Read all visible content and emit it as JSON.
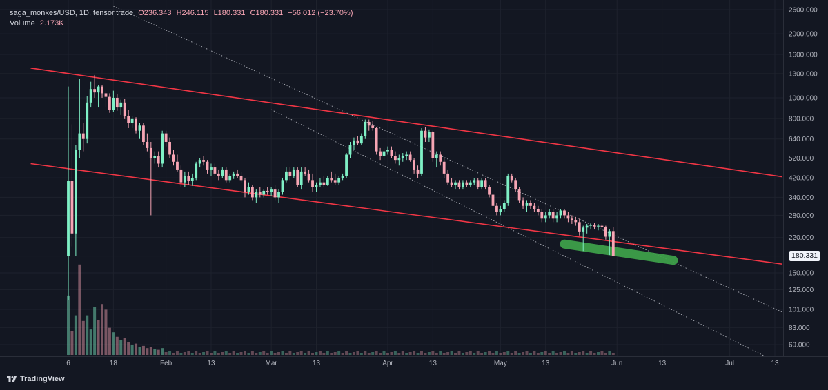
{
  "legend": {
    "symbol": "saga_monkes/USD, 1D, tensor.trade",
    "open": "O236.343",
    "high": "H246.115",
    "low": "L180.331",
    "close": "C180.331",
    "change": "−56.012 (−23.70%)",
    "volume_label": "Volume",
    "volume_value": "2.173K"
  },
  "last_price_label": "180.331",
  "brand": "TradingView",
  "colors": {
    "background": "#131722",
    "up": "#7ff0c6",
    "down": "#f7a5b4",
    "trendline": "#f23645",
    "channel": "#d1d4dc",
    "highlight": "#3fa44b"
  },
  "chart_data": {
    "type": "candlestick",
    "y_scale": "log",
    "ylim": [
      60,
      2700
    ],
    "y_ticks": [
      "2600.000",
      "2000.000",
      "1600.000",
      "1300.000",
      "1000.000",
      "800.000",
      "640.000",
      "520.000",
      "420.000",
      "340.000",
      "280.000",
      "220.000",
      "180.000",
      "150.000",
      "125.000",
      "101.000",
      "83.000",
      "69.000"
    ],
    "y_tick_values": [
      2600,
      2000,
      1600,
      1300,
      1000,
      800,
      640,
      520,
      420,
      340,
      280,
      220,
      180,
      150,
      125,
      101,
      83,
      69
    ],
    "x_ticks": [
      "6",
      "18",
      "Feb",
      "13",
      "Mar",
      "13",
      "Apr",
      "13",
      "May",
      "13",
      "Jun",
      "13",
      "Jul",
      "13"
    ],
    "x_tick_days": [
      0,
      12,
      26,
      38,
      54,
      66,
      85,
      97,
      115,
      127,
      146,
      158,
      176,
      188
    ],
    "x_start": "2024-01-06",
    "candles": [
      {
        "d": 0,
        "o": 180,
        "h": 1130,
        "l": 112,
        "c": 405
      },
      {
        "d": 1,
        "o": 405,
        "h": 750,
        "l": 200,
        "c": 230
      },
      {
        "d": 2,
        "o": 230,
        "h": 600,
        "l": 180,
        "c": 570
      },
      {
        "d": 3,
        "o": 570,
        "h": 1230,
        "l": 520,
        "c": 680
      },
      {
        "d": 4,
        "o": 680,
        "h": 760,
        "l": 560,
        "c": 640
      },
      {
        "d": 5,
        "o": 640,
        "h": 1020,
        "l": 610,
        "c": 950
      },
      {
        "d": 6,
        "o": 950,
        "h": 1190,
        "l": 900,
        "c": 1100
      },
      {
        "d": 7,
        "o": 1100,
        "h": 1280,
        "l": 1000,
        "c": 1060
      },
      {
        "d": 8,
        "o": 1060,
        "h": 1150,
        "l": 900,
        "c": 1130
      },
      {
        "d": 9,
        "o": 1130,
        "h": 1150,
        "l": 1000,
        "c": 1050
      },
      {
        "d": 10,
        "o": 1050,
        "h": 1080,
        "l": 900,
        "c": 1010
      },
      {
        "d": 11,
        "o": 1010,
        "h": 1050,
        "l": 850,
        "c": 880
      },
      {
        "d": 12,
        "o": 880,
        "h": 1080,
        "l": 860,
        "c": 1000
      },
      {
        "d": 13,
        "o": 1000,
        "h": 1040,
        "l": 870,
        "c": 900
      },
      {
        "d": 14,
        "o": 900,
        "h": 980,
        "l": 830,
        "c": 950
      },
      {
        "d": 15,
        "o": 950,
        "h": 990,
        "l": 800,
        "c": 820
      },
      {
        "d": 16,
        "o": 820,
        "h": 880,
        "l": 720,
        "c": 760
      },
      {
        "d": 17,
        "o": 760,
        "h": 820,
        "l": 720,
        "c": 800
      },
      {
        "d": 18,
        "o": 800,
        "h": 810,
        "l": 680,
        "c": 700
      },
      {
        "d": 19,
        "o": 700,
        "h": 760,
        "l": 640,
        "c": 740
      },
      {
        "d": 20,
        "o": 740,
        "h": 760,
        "l": 600,
        "c": 620
      },
      {
        "d": 21,
        "o": 620,
        "h": 680,
        "l": 560,
        "c": 580
      },
      {
        "d": 22,
        "o": 580,
        "h": 620,
        "l": 280,
        "c": 520
      },
      {
        "d": 23,
        "o": 520,
        "h": 560,
        "l": 490,
        "c": 530
      },
      {
        "d": 24,
        "o": 530,
        "h": 560,
        "l": 470,
        "c": 490
      },
      {
        "d": 25,
        "o": 490,
        "h": 700,
        "l": 470,
        "c": 680
      },
      {
        "d": 26,
        "o": 680,
        "h": 700,
        "l": 590,
        "c": 620
      },
      {
        "d": 27,
        "o": 620,
        "h": 650,
        "l": 520,
        "c": 540
      },
      {
        "d": 28,
        "o": 540,
        "h": 570,
        "l": 480,
        "c": 500
      },
      {
        "d": 29,
        "o": 500,
        "h": 540,
        "l": 450,
        "c": 460
      },
      {
        "d": 30,
        "o": 460,
        "h": 480,
        "l": 380,
        "c": 400
      },
      {
        "d": 31,
        "o": 400,
        "h": 450,
        "l": 380,
        "c": 430
      },
      {
        "d": 32,
        "o": 430,
        "h": 450,
        "l": 390,
        "c": 405
      },
      {
        "d": 33,
        "o": 405,
        "h": 440,
        "l": 385,
        "c": 420
      },
      {
        "d": 34,
        "o": 420,
        "h": 500,
        "l": 410,
        "c": 490
      },
      {
        "d": 35,
        "o": 490,
        "h": 520,
        "l": 470,
        "c": 510
      },
      {
        "d": 36,
        "o": 510,
        "h": 530,
        "l": 480,
        "c": 500
      },
      {
        "d": 37,
        "o": 500,
        "h": 510,
        "l": 440,
        "c": 460
      },
      {
        "d": 38,
        "o": 460,
        "h": 490,
        "l": 430,
        "c": 470
      },
      {
        "d": 39,
        "o": 470,
        "h": 490,
        "l": 430,
        "c": 440
      },
      {
        "d": 40,
        "o": 440,
        "h": 460,
        "l": 410,
        "c": 430
      },
      {
        "d": 41,
        "o": 430,
        "h": 470,
        "l": 420,
        "c": 460
      },
      {
        "d": 42,
        "o": 460,
        "h": 470,
        "l": 400,
        "c": 410
      },
      {
        "d": 43,
        "o": 410,
        "h": 440,
        "l": 400,
        "c": 430
      },
      {
        "d": 44,
        "o": 430,
        "h": 450,
        "l": 415,
        "c": 440
      },
      {
        "d": 45,
        "o": 440,
        "h": 460,
        "l": 420,
        "c": 430
      },
      {
        "d": 46,
        "o": 430,
        "h": 450,
        "l": 400,
        "c": 410
      },
      {
        "d": 47,
        "o": 410,
        "h": 420,
        "l": 340,
        "c": 360
      },
      {
        "d": 48,
        "o": 360,
        "h": 400,
        "l": 350,
        "c": 380
      },
      {
        "d": 49,
        "o": 380,
        "h": 390,
        "l": 330,
        "c": 340
      },
      {
        "d": 50,
        "o": 340,
        "h": 370,
        "l": 320,
        "c": 360
      },
      {
        "d": 51,
        "o": 360,
        "h": 380,
        "l": 340,
        "c": 350
      },
      {
        "d": 52,
        "o": 350,
        "h": 370,
        "l": 340,
        "c": 365
      },
      {
        "d": 53,
        "o": 365,
        "h": 380,
        "l": 350,
        "c": 360
      },
      {
        "d": 54,
        "o": 360,
        "h": 380,
        "l": 345,
        "c": 370
      },
      {
        "d": 55,
        "o": 370,
        "h": 390,
        "l": 330,
        "c": 340
      },
      {
        "d": 56,
        "o": 340,
        "h": 370,
        "l": 320,
        "c": 360
      },
      {
        "d": 57,
        "o": 360,
        "h": 420,
        "l": 350,
        "c": 410
      },
      {
        "d": 58,
        "o": 410,
        "h": 470,
        "l": 400,
        "c": 450
      },
      {
        "d": 59,
        "o": 450,
        "h": 470,
        "l": 410,
        "c": 430
      },
      {
        "d": 60,
        "o": 430,
        "h": 470,
        "l": 420,
        "c": 460
      },
      {
        "d": 61,
        "o": 460,
        "h": 470,
        "l": 380,
        "c": 390
      },
      {
        "d": 62,
        "o": 390,
        "h": 470,
        "l": 370,
        "c": 450
      },
      {
        "d": 63,
        "o": 450,
        "h": 470,
        "l": 430,
        "c": 440
      },
      {
        "d": 64,
        "o": 440,
        "h": 460,
        "l": 400,
        "c": 410
      },
      {
        "d": 65,
        "o": 410,
        "h": 440,
        "l": 360,
        "c": 380
      },
      {
        "d": 66,
        "o": 380,
        "h": 400,
        "l": 360,
        "c": 390
      },
      {
        "d": 67,
        "o": 390,
        "h": 420,
        "l": 380,
        "c": 400
      },
      {
        "d": 68,
        "o": 400,
        "h": 430,
        "l": 380,
        "c": 390
      },
      {
        "d": 69,
        "o": 390,
        "h": 430,
        "l": 385,
        "c": 420
      },
      {
        "d": 70,
        "o": 420,
        "h": 450,
        "l": 400,
        "c": 410
      },
      {
        "d": 71,
        "o": 410,
        "h": 440,
        "l": 390,
        "c": 400
      },
      {
        "d": 72,
        "o": 400,
        "h": 430,
        "l": 390,
        "c": 420
      },
      {
        "d": 73,
        "o": 420,
        "h": 440,
        "l": 410,
        "c": 430
      },
      {
        "d": 74,
        "o": 430,
        "h": 550,
        "l": 420,
        "c": 540
      },
      {
        "d": 75,
        "o": 540,
        "h": 620,
        "l": 520,
        "c": 600
      },
      {
        "d": 76,
        "o": 600,
        "h": 650,
        "l": 570,
        "c": 630
      },
      {
        "d": 77,
        "o": 630,
        "h": 660,
        "l": 600,
        "c": 610
      },
      {
        "d": 78,
        "o": 610,
        "h": 680,
        "l": 600,
        "c": 660
      },
      {
        "d": 79,
        "o": 660,
        "h": 790,
        "l": 640,
        "c": 770
      },
      {
        "d": 80,
        "o": 770,
        "h": 790,
        "l": 700,
        "c": 740
      },
      {
        "d": 81,
        "o": 740,
        "h": 780,
        "l": 700,
        "c": 720
      },
      {
        "d": 82,
        "o": 720,
        "h": 730,
        "l": 540,
        "c": 560
      },
      {
        "d": 83,
        "o": 560,
        "h": 580,
        "l": 510,
        "c": 530
      },
      {
        "d": 84,
        "o": 530,
        "h": 580,
        "l": 510,
        "c": 560
      },
      {
        "d": 85,
        "o": 560,
        "h": 590,
        "l": 540,
        "c": 570
      },
      {
        "d": 86,
        "o": 570,
        "h": 590,
        "l": 520,
        "c": 530
      },
      {
        "d": 87,
        "o": 530,
        "h": 560,
        "l": 490,
        "c": 510
      },
      {
        "d": 88,
        "o": 510,
        "h": 540,
        "l": 480,
        "c": 520
      },
      {
        "d": 89,
        "o": 520,
        "h": 550,
        "l": 500,
        "c": 530
      },
      {
        "d": 90,
        "o": 530,
        "h": 560,
        "l": 510,
        "c": 540
      },
      {
        "d": 91,
        "o": 540,
        "h": 560,
        "l": 500,
        "c": 510
      },
      {
        "d": 92,
        "o": 510,
        "h": 520,
        "l": 440,
        "c": 460
      },
      {
        "d": 93,
        "o": 460,
        "h": 480,
        "l": 420,
        "c": 440
      },
      {
        "d": 94,
        "o": 440,
        "h": 720,
        "l": 430,
        "c": 700
      },
      {
        "d": 95,
        "o": 700,
        "h": 730,
        "l": 620,
        "c": 650
      },
      {
        "d": 96,
        "o": 650,
        "h": 710,
        "l": 620,
        "c": 690
      },
      {
        "d": 97,
        "o": 690,
        "h": 700,
        "l": 500,
        "c": 520
      },
      {
        "d": 98,
        "o": 520,
        "h": 560,
        "l": 470,
        "c": 540
      },
      {
        "d": 99,
        "o": 540,
        "h": 560,
        "l": 480,
        "c": 500
      },
      {
        "d": 100,
        "o": 500,
        "h": 520,
        "l": 420,
        "c": 440
      },
      {
        "d": 101,
        "o": 440,
        "h": 460,
        "l": 390,
        "c": 400
      },
      {
        "d": 102,
        "o": 400,
        "h": 420,
        "l": 380,
        "c": 390
      },
      {
        "d": 103,
        "o": 390,
        "h": 410,
        "l": 370,
        "c": 400
      },
      {
        "d": 104,
        "o": 400,
        "h": 410,
        "l": 370,
        "c": 380
      },
      {
        "d": 105,
        "o": 380,
        "h": 410,
        "l": 370,
        "c": 400
      },
      {
        "d": 106,
        "o": 400,
        "h": 410,
        "l": 380,
        "c": 390
      },
      {
        "d": 107,
        "o": 390,
        "h": 410,
        "l": 380,
        "c": 400
      },
      {
        "d": 108,
        "o": 400,
        "h": 420,
        "l": 390,
        "c": 410
      },
      {
        "d": 109,
        "o": 410,
        "h": 420,
        "l": 370,
        "c": 380
      },
      {
        "d": 110,
        "o": 380,
        "h": 420,
        "l": 370,
        "c": 410
      },
      {
        "d": 111,
        "o": 410,
        "h": 420,
        "l": 370,
        "c": 380
      },
      {
        "d": 112,
        "o": 380,
        "h": 390,
        "l": 340,
        "c": 350
      },
      {
        "d": 113,
        "o": 350,
        "h": 360,
        "l": 300,
        "c": 310
      },
      {
        "d": 114,
        "o": 310,
        "h": 320,
        "l": 280,
        "c": 290
      },
      {
        "d": 115,
        "o": 290,
        "h": 310,
        "l": 280,
        "c": 300
      },
      {
        "d": 116,
        "o": 300,
        "h": 330,
        "l": 290,
        "c": 320
      },
      {
        "d": 117,
        "o": 320,
        "h": 440,
        "l": 310,
        "c": 430
      },
      {
        "d": 118,
        "o": 430,
        "h": 440,
        "l": 400,
        "c": 410
      },
      {
        "d": 119,
        "o": 410,
        "h": 420,
        "l": 360,
        "c": 370
      },
      {
        "d": 120,
        "o": 370,
        "h": 380,
        "l": 320,
        "c": 330
      },
      {
        "d": 121,
        "o": 330,
        "h": 340,
        "l": 300,
        "c": 310
      },
      {
        "d": 122,
        "o": 310,
        "h": 330,
        "l": 290,
        "c": 320
      },
      {
        "d": 123,
        "o": 320,
        "h": 330,
        "l": 300,
        "c": 310
      },
      {
        "d": 124,
        "o": 310,
        "h": 320,
        "l": 290,
        "c": 300
      },
      {
        "d": 125,
        "o": 300,
        "h": 310,
        "l": 280,
        "c": 290
      },
      {
        "d": 126,
        "o": 290,
        "h": 300,
        "l": 260,
        "c": 270
      },
      {
        "d": 127,
        "o": 270,
        "h": 290,
        "l": 260,
        "c": 280
      },
      {
        "d": 128,
        "o": 280,
        "h": 300,
        "l": 270,
        "c": 290
      },
      {
        "d": 129,
        "o": 290,
        "h": 300,
        "l": 260,
        "c": 270
      },
      {
        "d": 130,
        "o": 270,
        "h": 290,
        "l": 260,
        "c": 280
      },
      {
        "d": 131,
        "o": 280,
        "h": 300,
        "l": 270,
        "c": 295
      },
      {
        "d": 132,
        "o": 295,
        "h": 300,
        "l": 270,
        "c": 280
      },
      {
        "d": 133,
        "o": 280,
        "h": 290,
        "l": 260,
        "c": 270
      },
      {
        "d": 134,
        "o": 270,
        "h": 280,
        "l": 255,
        "c": 265
      },
      {
        "d": 135,
        "o": 265,
        "h": 275,
        "l": 250,
        "c": 260
      },
      {
        "d": 136,
        "o": 260,
        "h": 270,
        "l": 225,
        "c": 235
      },
      {
        "d": 137,
        "o": 235,
        "h": 250,
        "l": 190,
        "c": 245
      },
      {
        "d": 138,
        "o": 245,
        "h": 255,
        "l": 230,
        "c": 250
      },
      {
        "d": 139,
        "o": 250,
        "h": 258,
        "l": 240,
        "c": 252
      },
      {
        "d": 140,
        "o": 252,
        "h": 258,
        "l": 240,
        "c": 248
      },
      {
        "d": 141,
        "o": 248,
        "h": 255,
        "l": 238,
        "c": 250
      },
      {
        "d": 142,
        "o": 250,
        "h": 256,
        "l": 242,
        "c": 246
      },
      {
        "d": 143,
        "o": 246,
        "h": 250,
        "l": 215,
        "c": 222
      },
      {
        "d": 144,
        "o": 222,
        "h": 240,
        "l": 182,
        "c": 236
      },
      {
        "d": 145,
        "o": 236,
        "h": 246,
        "l": 180,
        "c": 180
      }
    ],
    "volume": [
      {
        "d": 0,
        "v": 105,
        "up": true
      },
      {
        "d": 1,
        "v": 42,
        "up": false
      },
      {
        "d": 2,
        "v": 70,
        "up": true
      },
      {
        "d": 3,
        "v": 160,
        "up": false
      },
      {
        "d": 4,
        "v": 60,
        "up": false
      },
      {
        "d": 5,
        "v": 70,
        "up": true
      },
      {
        "d": 6,
        "v": 45,
        "up": true
      },
      {
        "d": 7,
        "v": 85,
        "up": true
      },
      {
        "d": 8,
        "v": 62,
        "up": false
      },
      {
        "d": 9,
        "v": 90,
        "up": false
      },
      {
        "d": 10,
        "v": 80,
        "up": false
      },
      {
        "d": 11,
        "v": 48,
        "up": false
      },
      {
        "d": 12,
        "v": 40,
        "up": true
      },
      {
        "d": 13,
        "v": 32,
        "up": false
      },
      {
        "d": 14,
        "v": 26,
        "up": true
      },
      {
        "d": 15,
        "v": 30,
        "up": false
      },
      {
        "d": 16,
        "v": 22,
        "up": false
      },
      {
        "d": 17,
        "v": 18,
        "up": true
      },
      {
        "d": 18,
        "v": 20,
        "up": false
      },
      {
        "d": 19,
        "v": 14,
        "up": true
      },
      {
        "d": 20,
        "v": 16,
        "up": false
      },
      {
        "d": 21,
        "v": 12,
        "up": false
      },
      {
        "d": 22,
        "v": 14,
        "up": false
      },
      {
        "d": 23,
        "v": 10,
        "up": true
      },
      {
        "d": 24,
        "v": 9,
        "up": false
      },
      {
        "d": 25,
        "v": 12,
        "up": true
      }
    ],
    "channel_lines": [
      {
        "type": "solid",
        "from": {
          "d": -10,
          "p": 1380
        },
        "to": {
          "d": 190,
          "p": 425
        }
      },
      {
        "type": "solid",
        "from": {
          "d": -10,
          "p": 490
        },
        "to": {
          "d": 190,
          "p": 165
        }
      },
      {
        "type": "dotted",
        "from": {
          "d": 12,
          "p": 2700
        },
        "to": {
          "d": 190,
          "p": 98
        }
      },
      {
        "type": "dotted",
        "from": {
          "d": 54,
          "p": 880
        },
        "to": {
          "d": 186,
          "p": 60
        }
      }
    ],
    "highlight": {
      "from": {
        "d": 132,
        "p": 205
      },
      "to": {
        "d": 161,
        "p": 172
      }
    }
  }
}
